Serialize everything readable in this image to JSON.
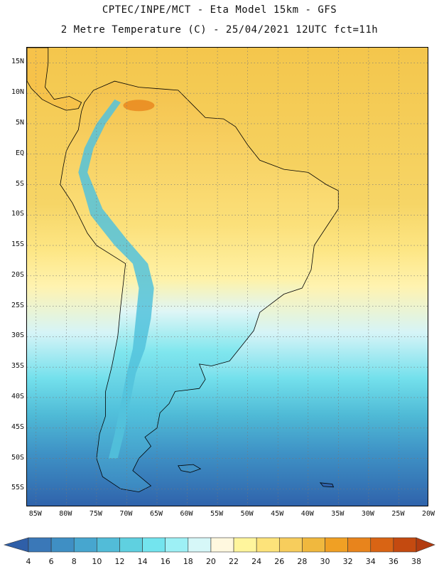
{
  "header": {
    "line1": "CPTEC/INPE/MCT -  Eta Model 15km - GFS",
    "line2": "2 Metre Temperature (C) - 25/04/2021 12UTC fct=11h"
  },
  "axes": {
    "lat_labels": [
      "15N",
      "10N",
      "5N",
      "EQ",
      "5S",
      "10S",
      "15S",
      "20S",
      "25S",
      "30S",
      "35S",
      "40S",
      "45S",
      "50S",
      "55S"
    ],
    "lon_labels": [
      "85W",
      "80W",
      "75W",
      "70W",
      "65W",
      "60W",
      "55W",
      "50W",
      "45W",
      "40W",
      "35W",
      "30W",
      "25W",
      "20W"
    ],
    "lat_values": [
      15,
      10,
      5,
      0,
      -5,
      -10,
      -15,
      -20,
      -25,
      -30,
      -35,
      -40,
      -45,
      -50,
      -55
    ],
    "lon_values": [
      -85,
      -80,
      -75,
      -70,
      -65,
      -60,
      -55,
      -50,
      -45,
      -40,
      -35,
      -30,
      -25,
      -20
    ],
    "lat_range": [
      -58,
      17.5
    ],
    "lon_range": [
      -86.5,
      -20
    ],
    "grid": "dotted"
  },
  "colorbar": {
    "values": [
      "4",
      "6",
      "8",
      "10",
      "12",
      "14",
      "16",
      "18",
      "20",
      "22",
      "24",
      "26",
      "28",
      "30",
      "32",
      "34",
      "36",
      "38"
    ],
    "colors": [
      "#2f5fa8",
      "#3a78b8",
      "#3f8fc4",
      "#47a6cf",
      "#52bcd8",
      "#5fd0e0",
      "#73e4ee",
      "#9df0f5",
      "#d6f7f8",
      "#fff8df",
      "#fff59c",
      "#fde37a",
      "#f7cd5c",
      "#f0b83e",
      "#f0a024",
      "#e8841c",
      "#d96414",
      "#c44a10",
      "#b23c10"
    ]
  }
}
